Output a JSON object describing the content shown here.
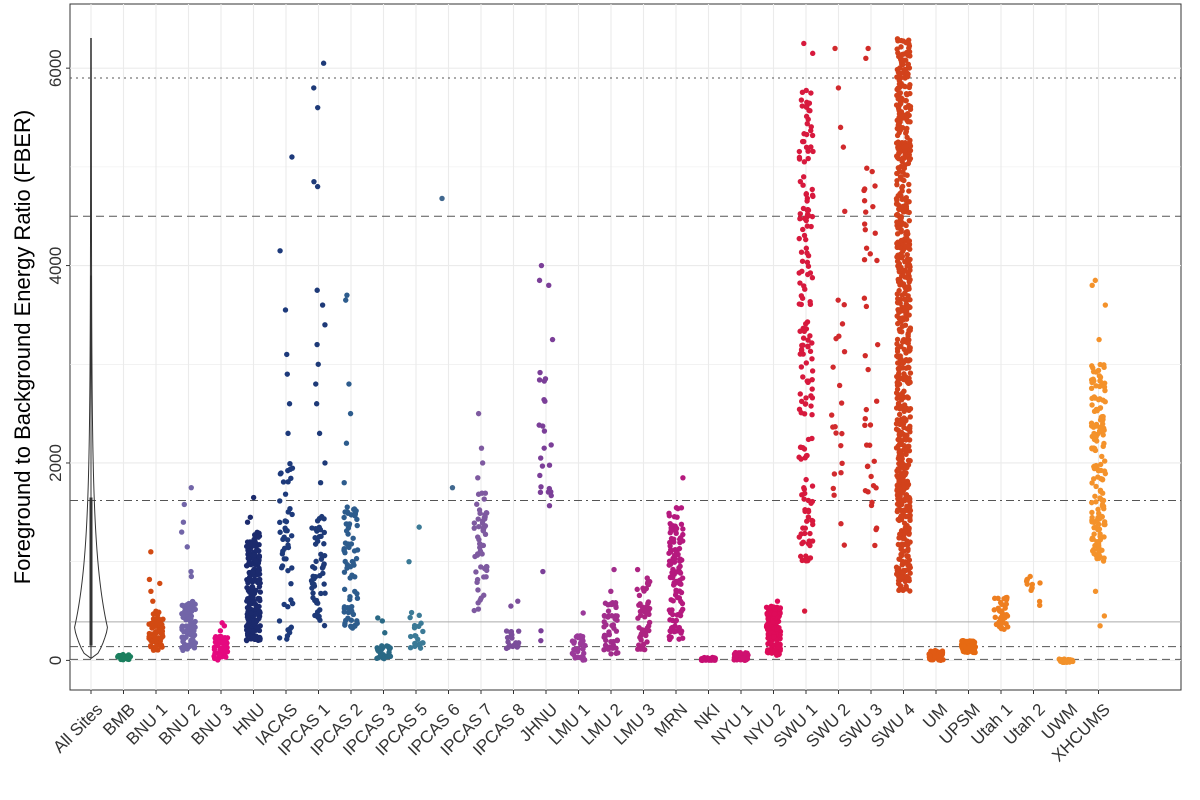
{
  "chart_data": {
    "type": "scatter",
    "title": "",
    "ylabel": "Foreground to Background Energy Ratio (FBER)",
    "xlabel": "",
    "ylim": [
      -300,
      6650
    ],
    "y_ticks": [
      0,
      2000,
      4000,
      6000
    ],
    "grid": true,
    "legend": "none",
    "categories": [
      "All Sites",
      "BMB",
      "BNU 1",
      "BNU 2",
      "BNU 3",
      "HNU",
      "IACAS",
      "IPCAS 1",
      "IPCAS 2",
      "IPCAS 3",
      "IPCAS 5",
      "IPCAS 6",
      "IPCAS 7",
      "IPCAS 8",
      "JHNU",
      "LMU 1",
      "LMU 2",
      "LMU 3",
      "MRN",
      "NKI",
      "NYU 1",
      "NYU 2",
      "SWU 1",
      "SWU 2",
      "SWU 3",
      "SWU 4",
      "UM",
      "UPSM",
      "Utah 1",
      "Utah 2",
      "UWM",
      "XHCUMS"
    ],
    "reference_lines": [
      {
        "y": 5900,
        "style": "dotted"
      },
      {
        "y": 4500,
        "style": "dashed"
      },
      {
        "y": 1620,
        "style": "dashdot"
      },
      {
        "y": 390,
        "style": "solid"
      },
      {
        "y": 140,
        "style": "dashdot"
      },
      {
        "y": 10,
        "style": "dashed"
      }
    ],
    "violin": {
      "category": "All Sites",
      "min": 20,
      "max": 6300,
      "q1": 150,
      "q3": 1650,
      "whisker_high": 3900,
      "mode": 300
    },
    "series": [
      {
        "category": "BMB",
        "color": "#1b7f5e",
        "range": [
          0,
          60
        ],
        "n": 25,
        "outliers": []
      },
      {
        "category": "BNU 1",
        "color": "#d24a12",
        "range": [
          100,
          500
        ],
        "n": 70,
        "outliers": [
          600,
          700,
          780,
          820,
          1100
        ]
      },
      {
        "category": "BNU 2",
        "color": "#7265a8",
        "range": [
          100,
          600
        ],
        "n": 90,
        "outliers": [
          850,
          900,
          1150,
          1300,
          1400,
          1580,
          1750
        ]
      },
      {
        "category": "BNU 3",
        "color": "#e5097f",
        "range": [
          0,
          250
        ],
        "n": 50,
        "outliers": [
          300,
          350,
          380
        ]
      },
      {
        "category": "HNU",
        "color": "#1b2a6d",
        "range": [
          200,
          1300
        ],
        "n": 200,
        "outliers": [
          1400,
          1450,
          1650
        ]
      },
      {
        "category": "IACAS",
        "color": "#1d3a7b",
        "range": [
          200,
          2000
        ],
        "n": 50,
        "outliers": [
          2300,
          2600,
          2900,
          3100,
          3550,
          4150,
          5100
        ]
      },
      {
        "category": "IPCAS 1",
        "color": "#1e3a78",
        "range": [
          350,
          1500
        ],
        "n": 55,
        "outliers": [
          1800,
          2000,
          2300,
          2600,
          2800,
          3000,
          3200,
          3400,
          3600,
          3750,
          4800,
          4850,
          5600,
          5800,
          6050
        ]
      },
      {
        "category": "IPCAS 2",
        "color": "#2d5c8d",
        "range": [
          300,
          1600
        ],
        "n": 75,
        "outliers": [
          1800,
          2200,
          2500,
          2800,
          3650,
          3700
        ]
      },
      {
        "category": "IPCAS 3",
        "color": "#2a6985",
        "range": [
          0,
          150
        ],
        "n": 25,
        "outliers": [
          280,
          400,
          430
        ]
      },
      {
        "category": "IPCAS 5",
        "color": "#3b7a96",
        "range": [
          100,
          500
        ],
        "n": 20,
        "outliers": [
          1000,
          1350
        ]
      },
      {
        "category": "IPCAS 6",
        "color": "#41688f",
        "range": [
          1750,
          1750
        ],
        "n": 1,
        "outliers": [
          4680
        ]
      },
      {
        "category": "IPCAS 7",
        "color": "#7e5aa0",
        "range": [
          500,
          1700
        ],
        "n": 55,
        "outliers": [
          1850,
          2000,
          2150,
          2500
        ]
      },
      {
        "category": "IPCAS 8",
        "color": "#7b4e9b",
        "range": [
          100,
          300
        ],
        "n": 20,
        "outliers": [
          550,
          600
        ]
      },
      {
        "category": "JHNU",
        "color": "#7b3f98",
        "range": [
          1500,
          3000
        ],
        "n": 22,
        "outliers": [
          200,
          300,
          900,
          3250,
          3800,
          3850,
          4000
        ]
      },
      {
        "category": "LMU 1",
        "color": "#9b3a9a",
        "range": [
          0,
          250
        ],
        "n": 35,
        "outliers": [
          480
        ]
      },
      {
        "category": "LMU 2",
        "color": "#a12d8c",
        "range": [
          50,
          600
        ],
        "n": 50,
        "outliers": [
          700,
          920
        ]
      },
      {
        "category": "LMU 3",
        "color": "#ad2482",
        "range": [
          100,
          850
        ],
        "n": 55,
        "outliers": [
          920
        ]
      },
      {
        "category": "MRN",
        "color": "#b5197e",
        "range": [
          200,
          1550
        ],
        "n": 120,
        "outliers": [
          1850
        ]
      },
      {
        "category": "NKI",
        "color": "#c60f73",
        "range": [
          0,
          30
        ],
        "n": 35,
        "outliers": []
      },
      {
        "category": "NYU 1",
        "color": "#cf1170",
        "range": [
          0,
          80
        ],
        "n": 50,
        "outliers": []
      },
      {
        "category": "NYU 2",
        "color": "#de0b59",
        "range": [
          50,
          550
        ],
        "n": 180,
        "outliers": [
          600
        ]
      },
      {
        "category": "SWU 1",
        "color": "#d7193d",
        "range": [
          1000,
          5800
        ],
        "n": 170,
        "outliers": [
          500,
          6150,
          6250
        ]
      },
      {
        "category": "SWU 2",
        "color": "#d12a2e",
        "range": [
          1100,
          3800
        ],
        "n": 22,
        "outliers": [
          4550,
          5200,
          5400,
          5800,
          6200
        ]
      },
      {
        "category": "SWU 3",
        "color": "#d12b28",
        "range": [
          1100,
          5000
        ],
        "n": 40,
        "outliers": [
          6100,
          6200
        ]
      },
      {
        "category": "SWU 4",
        "color": "#d2421b",
        "range": [
          700,
          6300
        ],
        "n": 700,
        "outliers": []
      },
      {
        "category": "UM",
        "color": "#e05a14",
        "range": [
          0,
          100
        ],
        "n": 60,
        "outliers": []
      },
      {
        "category": "UPSM",
        "color": "#e66a12",
        "range": [
          80,
          200
        ],
        "n": 90,
        "outliers": []
      },
      {
        "category": "Utah 1",
        "color": "#ee7e20",
        "range": [
          300,
          650
        ],
        "n": 35,
        "outliers": []
      },
      {
        "category": "Utah 2",
        "color": "#f08522",
        "range": [
          550,
          850
        ],
        "n": 12,
        "outliers": []
      },
      {
        "category": "UWM",
        "color": "#f2912a",
        "range": [
          -20,
          15
        ],
        "n": 40,
        "outliers": []
      },
      {
        "category": "XHCUMS",
        "color": "#f4922b",
        "range": [
          1000,
          3000
        ],
        "n": 160,
        "outliers": [
          350,
          450,
          700,
          3250,
          3600,
          3800,
          3850
        ]
      }
    ]
  }
}
